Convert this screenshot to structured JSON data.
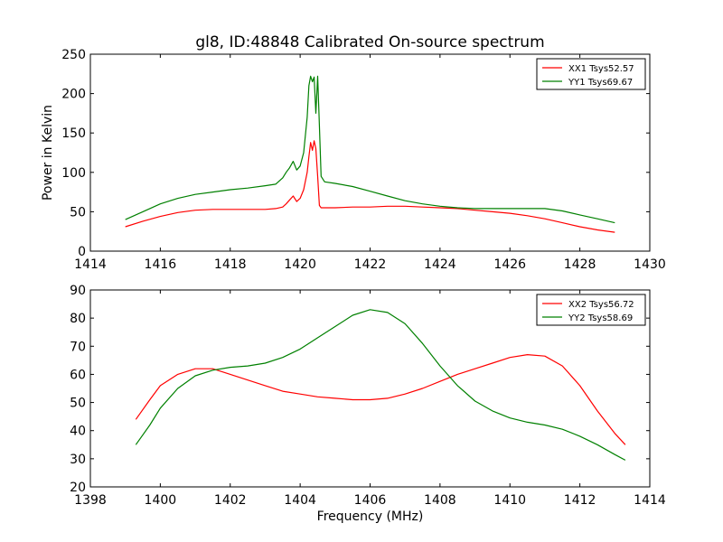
{
  "chart_data": [
    {
      "type": "line",
      "title": "gl8, ID:48848 Calibrated On-source spectrum",
      "xlabel": "",
      "ylabel": "Power in Kelvin",
      "xlim": [
        1414,
        1430
      ],
      "ylim": [
        0,
        250
      ],
      "xticks": [
        "1414",
        "1416",
        "1418",
        "1420",
        "1422",
        "1424",
        "1426",
        "1428",
        "1430"
      ],
      "yticks": [
        "0",
        "50",
        "100",
        "150",
        "200",
        "250"
      ],
      "grid": false,
      "legend_position": "top-right",
      "series": [
        {
          "name": "XX1 Tsys52.57",
          "color": "#ff0000",
          "x": [
            1415.0,
            1415.5,
            1416.0,
            1416.5,
            1417.0,
            1417.5,
            1418.0,
            1418.5,
            1419.0,
            1419.3,
            1419.5,
            1419.6,
            1419.7,
            1419.8,
            1419.9,
            1420.0,
            1420.1,
            1420.2,
            1420.25,
            1420.3,
            1420.35,
            1420.4,
            1420.45,
            1420.5,
            1420.55,
            1420.6,
            1420.7,
            1421.0,
            1421.5,
            1422.0,
            1422.5,
            1423.0,
            1423.5,
            1424.0,
            1424.5,
            1425.0,
            1425.5,
            1426.0,
            1426.5,
            1427.0,
            1427.5,
            1428.0,
            1428.5,
            1429.0
          ],
          "y": [
            31,
            38,
            44,
            49,
            52,
            53,
            53,
            53,
            53,
            54,
            56,
            60,
            65,
            70,
            63,
            67,
            78,
            100,
            120,
            138,
            128,
            140,
            130,
            95,
            58,
            55,
            55,
            55,
            56,
            56,
            57,
            57,
            56,
            55,
            54,
            52,
            50,
            48,
            45,
            41,
            36,
            31,
            27,
            24
          ]
        },
        {
          "name": "YY1 Tsys69.67",
          "color": "#008000",
          "x": [
            1415.0,
            1415.5,
            1416.0,
            1416.5,
            1417.0,
            1417.5,
            1418.0,
            1418.5,
            1419.0,
            1419.3,
            1419.5,
            1419.6,
            1419.7,
            1419.8,
            1419.9,
            1420.0,
            1420.1,
            1420.2,
            1420.25,
            1420.3,
            1420.35,
            1420.4,
            1420.45,
            1420.5,
            1420.55,
            1420.6,
            1420.7,
            1421.0,
            1421.5,
            1422.0,
            1422.5,
            1423.0,
            1423.5,
            1424.0,
            1424.5,
            1425.0,
            1425.5,
            1426.0,
            1426.5,
            1427.0,
            1427.5,
            1428.0,
            1428.5,
            1429.0
          ],
          "y": [
            40,
            50,
            60,
            67,
            72,
            75,
            78,
            80,
            83,
            85,
            93,
            100,
            106,
            114,
            103,
            108,
            125,
            170,
            210,
            222,
            215,
            221,
            175,
            222,
            160,
            95,
            88,
            86,
            82,
            76,
            70,
            64,
            60,
            57,
            55,
            54,
            54,
            54,
            54,
            54,
            51,
            46,
            41,
            36
          ]
        }
      ]
    },
    {
      "type": "line",
      "title": "",
      "xlabel": "Frequency (MHz)",
      "ylabel": "",
      "xlim": [
        1398,
        1414
      ],
      "ylim": [
        20,
        90
      ],
      "xticks": [
        "1398",
        "1400",
        "1402",
        "1404",
        "1406",
        "1408",
        "1410",
        "1412",
        "1414"
      ],
      "yticks": [
        "20",
        "30",
        "40",
        "50",
        "60",
        "70",
        "80",
        "90"
      ],
      "grid": false,
      "legend_position": "top-right",
      "series": [
        {
          "name": "XX2 Tsys56.72",
          "color": "#ff0000",
          "x": [
            1399.3,
            1399.7,
            1400.0,
            1400.5,
            1401.0,
            1401.5,
            1402.0,
            1402.5,
            1403.0,
            1403.5,
            1404.0,
            1404.5,
            1405.0,
            1405.5,
            1406.0,
            1406.5,
            1407.0,
            1407.5,
            1408.0,
            1408.5,
            1409.0,
            1409.5,
            1410.0,
            1410.5,
            1411.0,
            1411.5,
            1412.0,
            1412.5,
            1413.0,
            1413.3
          ],
          "y": [
            44,
            51,
            56,
            60,
            62,
            62,
            60,
            58,
            56,
            54,
            53,
            52,
            51.5,
            51,
            51,
            51.5,
            53,
            55,
            57.5,
            60,
            62,
            64,
            66,
            67,
            66.5,
            63,
            56,
            47,
            39,
            35
          ]
        },
        {
          "name": "YY2 Tsys58.69",
          "color": "#008000",
          "x": [
            1399.3,
            1399.7,
            1400.0,
            1400.5,
            1401.0,
            1401.5,
            1402.0,
            1402.5,
            1403.0,
            1403.5,
            1404.0,
            1404.5,
            1405.0,
            1405.5,
            1406.0,
            1406.5,
            1407.0,
            1407.5,
            1408.0,
            1408.5,
            1409.0,
            1409.5,
            1410.0,
            1410.5,
            1411.0,
            1411.5,
            1412.0,
            1412.5,
            1413.0,
            1413.3
          ],
          "y": [
            35,
            42,
            48,
            55,
            59.5,
            61.5,
            62.5,
            63,
            64,
            66,
            69,
            73,
            77,
            81,
            83,
            82,
            78,
            71,
            63,
            56,
            50.5,
            47,
            44.5,
            43,
            42,
            40.5,
            38,
            35,
            31.5,
            29.5
          ]
        }
      ]
    }
  ]
}
